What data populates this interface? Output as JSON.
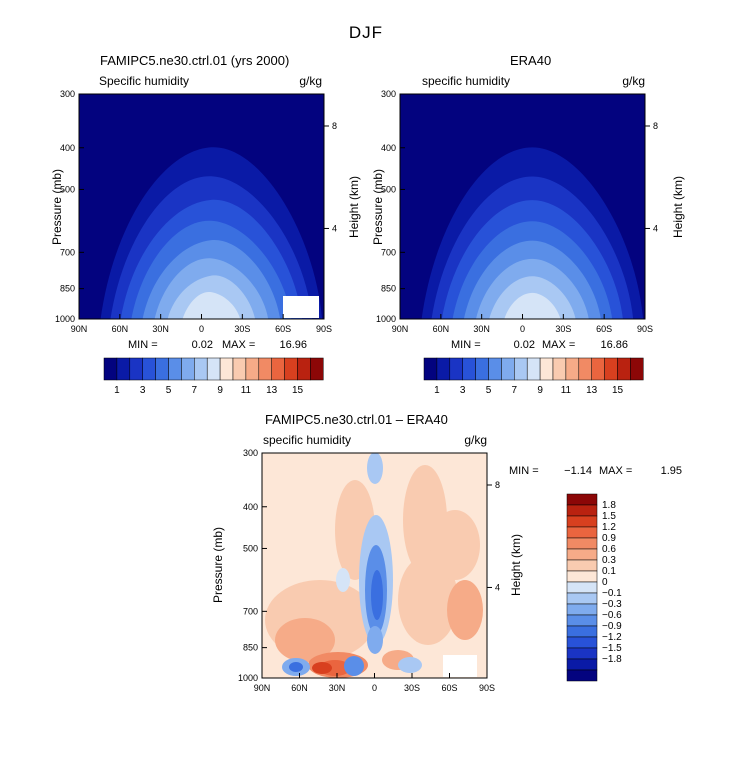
{
  "main_title": "DJF",
  "colors": {
    "cmap": [
      "#03037f",
      "#0a1aa6",
      "#1a34c4",
      "#2852d8",
      "#3a6fe0",
      "#5a8ee8",
      "#7fabee",
      "#a9c8f3",
      "#d5e4f7",
      "#fde7d7",
      "#f9cbb0",
      "#f6ab88",
      "#f18a64",
      "#ea653f",
      "#d8401f",
      "#b92210",
      "#8c0707"
    ],
    "mask": "#ffffff"
  },
  "chart_data": [
    {
      "type": "heatmap",
      "title": "FAMIPC5.ne30.ctrl.01 (yrs 2000)",
      "subtitle_left": "Specific humidity",
      "subtitle_right": "g/kg",
      "xlabel": "",
      "ylabel": "Pressure (mb)",
      "ylabel_right": "Height (km)",
      "x_ticks": [
        "90N",
        "60N",
        "30N",
        "0",
        "30S",
        "60S",
        "90S"
      ],
      "y_ticks": [
        "300",
        "400",
        "500",
        "700",
        "850",
        "1000"
      ],
      "y_ticks_right": [
        "8",
        "4"
      ],
      "stats": {
        "min_label": "MIN =",
        "min": "0.02",
        "max_label": "MAX =",
        "max": "16.96"
      },
      "peak_value": 16.96,
      "colorbar_labels": [
        "1",
        "3",
        "5",
        "7",
        "9",
        "11",
        "13",
        "15"
      ]
    },
    {
      "type": "heatmap",
      "title": "ERA40",
      "subtitle_left": "specific humidity",
      "subtitle_right": "g/kg",
      "xlabel": "",
      "ylabel": "Pressure (mb)",
      "ylabel_right": "Height (km)",
      "x_ticks": [
        "90N",
        "60N",
        "30N",
        "0",
        "30S",
        "60S",
        "90S"
      ],
      "y_ticks": [
        "300",
        "400",
        "500",
        "700",
        "850",
        "1000"
      ],
      "y_ticks_right": [
        "8",
        "4"
      ],
      "stats": {
        "min_label": "MIN =",
        "min": "0.02",
        "max_label": "MAX =",
        "max": "16.86"
      },
      "peak_value": 16.86,
      "colorbar_labels": [
        "1",
        "3",
        "5",
        "7",
        "9",
        "11",
        "13",
        "15"
      ]
    },
    {
      "type": "heatmap",
      "title": "FAMIPC5.ne30.ctrl.01 – ERA40",
      "subtitle_left": "specific humidity",
      "subtitle_right": "g/kg",
      "xlabel": "",
      "ylabel": "Pressure (mb)",
      "ylabel_right": "Height (km)",
      "x_ticks": [
        "90N",
        "60N",
        "30N",
        "0",
        "30S",
        "60S",
        "90S"
      ],
      "y_ticks": [
        "300",
        "400",
        "500",
        "700",
        "850",
        "1000"
      ],
      "y_ticks_right": [
        "8",
        "4"
      ],
      "stats": {
        "min_label": "MIN =",
        "min": "−1.14",
        "max_label": "MAX =",
        "max": "1.95"
      },
      "colorbar_levels": [
        "1.8",
        "1.5",
        "1.2",
        "0.9",
        "0.6",
        "0.3",
        "0.1",
        "0",
        "−0.1",
        "−0.3",
        "−0.6",
        "−0.9",
        "−1.2",
        "−1.5",
        "−1.8"
      ]
    }
  ]
}
